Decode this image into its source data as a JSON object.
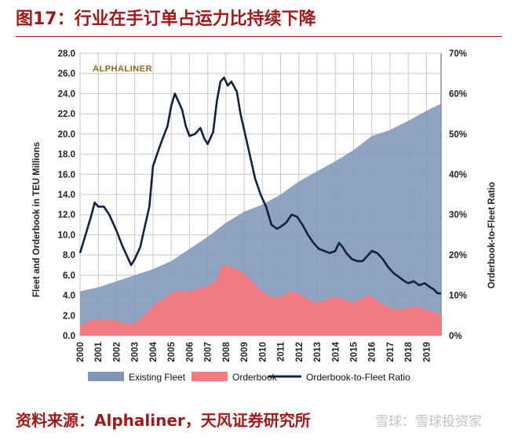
{
  "header": {
    "title": "图17：行业在手订单占运力比持续下降"
  },
  "footer": {
    "source": "资料来源：Alphaliner，天风证券研究所",
    "watermark": "雪球：雪球投资家"
  },
  "colors": {
    "fleet": "#7f96b9",
    "orderbook": "#f47a80",
    "ratio": "#14213d",
    "title": "#9e1a1a"
  },
  "chart_data": {
    "type": "area",
    "brand_label": "ALPHALINER",
    "ylabel": "Fleet and Orderbook in TEU Millions",
    "y2label": "Orderbook-to-Fleet Ratio",
    "ylim": [
      0,
      28
    ],
    "y2lim": [
      0,
      70
    ],
    "y_ticks": [
      "28.0",
      "26.0",
      "24.0",
      "22.0",
      "20.0",
      "18.0",
      "16.0",
      "14.0",
      "12.0",
      "10.0",
      "8.0",
      "6.0",
      "4.0",
      "2.0",
      "0.0"
    ],
    "y2_ticks": [
      "70%",
      "60%",
      "50%",
      "40%",
      "30%",
      "20%",
      "10%",
      "0%"
    ],
    "x_ticks": [
      "2000",
      "2001",
      "2002",
      "2003",
      "2004",
      "2005",
      "2006",
      "2007",
      "2008",
      "2009",
      "2010",
      "2011",
      "2012",
      "2013",
      "2014",
      "2015",
      "2016",
      "2017",
      "2018",
      "2019"
    ],
    "xlim": [
      2000,
      2019.8
    ],
    "series": [
      {
        "name": "Existing Fleet",
        "kind": "area",
        "axis": "left",
        "points": [
          [
            2000,
            4.4
          ],
          [
            2001,
            4.8
          ],
          [
            2002,
            5.4
          ],
          [
            2003,
            6.0
          ],
          [
            2004,
            6.6
          ],
          [
            2005,
            7.4
          ],
          [
            2006,
            8.6
          ],
          [
            2007,
            9.8
          ],
          [
            2008,
            11.2
          ],
          [
            2009,
            12.3
          ],
          [
            2010,
            13.0
          ],
          [
            2011,
            14.0
          ],
          [
            2012,
            15.3
          ],
          [
            2013,
            16.3
          ],
          [
            2014,
            17.3
          ],
          [
            2015,
            18.4
          ],
          [
            2016,
            19.8
          ],
          [
            2017,
            20.4
          ],
          [
            2018,
            21.3
          ],
          [
            2019,
            22.3
          ],
          [
            2019.8,
            23.0
          ]
        ]
      },
      {
        "name": "Orderbook",
        "kind": "area",
        "axis": "left",
        "points": [
          [
            2000,
            1.0
          ],
          [
            2000.5,
            1.5
          ],
          [
            2001,
            1.6
          ],
          [
            2002,
            1.5
          ],
          [
            2002.5,
            1.2
          ],
          [
            2003,
            1.2
          ],
          [
            2003.5,
            2.0
          ],
          [
            2004,
            3.0
          ],
          [
            2004.5,
            3.6
          ],
          [
            2005,
            4.2
          ],
          [
            2005.5,
            4.5
          ],
          [
            2006,
            4.4
          ],
          [
            2006.5,
            4.7
          ],
          [
            2007,
            4.9
          ],
          [
            2007.5,
            5.6
          ],
          [
            2007.8,
            7.0
          ],
          [
            2008,
            7.0
          ],
          [
            2008.5,
            6.7
          ],
          [
            2009,
            6.2
          ],
          [
            2009.5,
            5.3
          ],
          [
            2010,
            4.4
          ],
          [
            2010.5,
            3.8
          ],
          [
            2011,
            3.9
          ],
          [
            2011.5,
            4.4
          ],
          [
            2012,
            4.2
          ],
          [
            2012.5,
            3.6
          ],
          [
            2013,
            3.3
          ],
          [
            2013.5,
            3.6
          ],
          [
            2014,
            3.9
          ],
          [
            2014.5,
            3.6
          ],
          [
            2015,
            3.3
          ],
          [
            2015.5,
            3.8
          ],
          [
            2016,
            4.0
          ],
          [
            2016.5,
            3.2
          ],
          [
            2017,
            2.8
          ],
          [
            2017.5,
            2.6
          ],
          [
            2018,
            2.8
          ],
          [
            2018.5,
            2.9
          ],
          [
            2019,
            2.6
          ],
          [
            2019.5,
            2.3
          ],
          [
            2019.8,
            2.1
          ]
        ]
      },
      {
        "name": "Orderbook-to-Fleet Ratio",
        "kind": "line",
        "axis": "right",
        "points": [
          [
            2000,
            20.5
          ],
          [
            2000.3,
            25
          ],
          [
            2000.6,
            29.5
          ],
          [
            2000.8,
            33
          ],
          [
            2001,
            32
          ],
          [
            2001.3,
            32
          ],
          [
            2001.6,
            30
          ],
          [
            2002,
            26
          ],
          [
            2002.3,
            22.5
          ],
          [
            2002.6,
            19.5
          ],
          [
            2002.8,
            17.5
          ],
          [
            2003,
            19
          ],
          [
            2003.3,
            22
          ],
          [
            2003.5,
            26
          ],
          [
            2003.8,
            32
          ],
          [
            2004,
            42
          ],
          [
            2004.3,
            46
          ],
          [
            2004.5,
            48.5
          ],
          [
            2004.8,
            52
          ],
          [
            2005,
            57
          ],
          [
            2005.2,
            60
          ],
          [
            2005.4,
            58
          ],
          [
            2005.6,
            56
          ],
          [
            2005.8,
            52
          ],
          [
            2006,
            49.5
          ],
          [
            2006.3,
            50
          ],
          [
            2006.6,
            51.5
          ],
          [
            2006.8,
            49
          ],
          [
            2007,
            47.5
          ],
          [
            2007.3,
            50.5
          ],
          [
            2007.5,
            58
          ],
          [
            2007.7,
            63
          ],
          [
            2007.9,
            64
          ],
          [
            2008.1,
            62
          ],
          [
            2008.3,
            63
          ],
          [
            2008.6,
            60.5
          ],
          [
            2008.8,
            55
          ],
          [
            2009,
            51
          ],
          [
            2009.3,
            45
          ],
          [
            2009.6,
            39
          ],
          [
            2009.9,
            35
          ],
          [
            2010.2,
            32
          ],
          [
            2010.5,
            27.5
          ],
          [
            2010.8,
            26.5
          ],
          [
            2011,
            27
          ],
          [
            2011.3,
            28
          ],
          [
            2011.6,
            30
          ],
          [
            2011.9,
            29.5
          ],
          [
            2012.2,
            27.5
          ],
          [
            2012.5,
            25
          ],
          [
            2012.8,
            23
          ],
          [
            2013.1,
            21.5
          ],
          [
            2013.4,
            21
          ],
          [
            2013.7,
            20.5
          ],
          [
            2014,
            21
          ],
          [
            2014.2,
            23
          ],
          [
            2014.4,
            22
          ],
          [
            2014.6,
            20.5
          ],
          [
            2014.9,
            19
          ],
          [
            2015.2,
            18.5
          ],
          [
            2015.5,
            18.5
          ],
          [
            2015.8,
            20
          ],
          [
            2016,
            21
          ],
          [
            2016.3,
            20.5
          ],
          [
            2016.6,
            19
          ],
          [
            2016.9,
            17
          ],
          [
            2017.2,
            15.5
          ],
          [
            2017.5,
            14.5
          ],
          [
            2017.8,
            13.5
          ],
          [
            2018,
            13
          ],
          [
            2018.3,
            13.5
          ],
          [
            2018.6,
            12.5
          ],
          [
            2018.9,
            13
          ],
          [
            2019.2,
            12
          ],
          [
            2019.4,
            11.5
          ],
          [
            2019.6,
            10.5
          ],
          [
            2019.8,
            10.5
          ]
        ]
      }
    ],
    "legend": [
      "Existing Fleet",
      "Orderbook",
      "Orderbook-to-Fleet Ratio"
    ],
    "legend_position": "bottom"
  }
}
